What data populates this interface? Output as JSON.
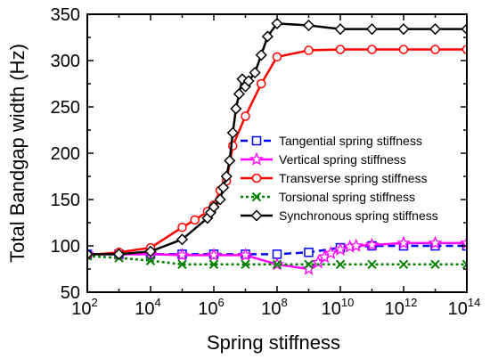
{
  "chart_data": {
    "type": "line",
    "xlabel": "Spring stiffness",
    "ylabel": "Total Bandgap width (Hz)",
    "xscale": "log10",
    "xlim_exp": [
      2,
      14
    ],
    "ylim": [
      50,
      350
    ],
    "xticks_exp": [
      2,
      4,
      6,
      8,
      10,
      12,
      14
    ],
    "xtick_base": "10",
    "yticks": [
      50,
      100,
      150,
      200,
      250,
      300,
      350
    ],
    "grid": false,
    "legend_position": "right",
    "series": [
      {
        "name": "Tangential spring stiffness",
        "color": "#0000ff",
        "line": "dashed",
        "marker": "square",
        "points": [
          [
            2,
            91
          ],
          [
            3,
            91
          ],
          [
            4,
            91
          ],
          [
            5,
            91
          ],
          [
            6,
            91
          ],
          [
            7,
            91
          ],
          [
            8,
            91
          ],
          [
            9,
            93
          ],
          [
            10,
            98
          ],
          [
            11,
            100
          ],
          [
            12,
            100
          ],
          [
            13,
            100
          ],
          [
            14,
            100
          ]
        ]
      },
      {
        "name": "Vertical spring stiffness",
        "color": "#ff00ff",
        "line": "solid",
        "marker": "star",
        "points": [
          [
            2,
            91
          ],
          [
            3,
            91
          ],
          [
            4,
            91
          ],
          [
            5,
            90
          ],
          [
            6,
            90
          ],
          [
            7,
            90
          ],
          [
            8,
            80
          ],
          [
            9,
            75
          ],
          [
            9.3,
            82
          ],
          [
            9.5,
            88
          ],
          [
            9.7,
            92
          ],
          [
            10,
            96
          ],
          [
            10.3,
            99
          ],
          [
            10.5,
            100
          ],
          [
            11,
            101
          ],
          [
            12,
            103
          ],
          [
            13,
            103
          ],
          [
            14,
            103
          ]
        ]
      },
      {
        "name": "Transverse spring stiffness",
        "color": "#ff0000",
        "line": "solid",
        "marker": "circle",
        "points": [
          [
            2,
            90
          ],
          [
            3,
            93
          ],
          [
            4,
            98
          ],
          [
            5,
            120
          ],
          [
            5.4,
            128
          ],
          [
            5.8,
            137
          ],
          [
            6,
            144
          ],
          [
            6.2,
            160
          ],
          [
            6.4,
            170
          ],
          [
            6.6,
            208
          ],
          [
            7,
            240
          ],
          [
            7.5,
            275
          ],
          [
            8,
            304
          ],
          [
            9,
            311
          ],
          [
            10,
            312
          ],
          [
            11,
            312
          ],
          [
            12,
            312
          ],
          [
            13,
            312
          ],
          [
            14,
            312
          ]
        ]
      },
      {
        "name": "Torsional spring stiffness",
        "color": "#008000",
        "line": "dotted",
        "marker": "x",
        "points": [
          [
            2,
            89
          ],
          [
            3,
            87
          ],
          [
            4,
            84
          ],
          [
            5,
            80
          ],
          [
            6,
            80
          ],
          [
            7,
            80
          ],
          [
            8,
            80
          ],
          [
            9,
            80
          ],
          [
            10,
            80
          ],
          [
            11,
            80
          ],
          [
            12,
            80
          ],
          [
            13,
            80
          ],
          [
            14,
            80
          ]
        ]
      },
      {
        "name": "Synchronous spring stiffness",
        "color": "#000000",
        "line": "solid",
        "marker": "diamond",
        "points": [
          [
            2,
            91
          ],
          [
            3,
            91
          ],
          [
            4,
            94
          ],
          [
            5,
            107
          ],
          [
            5.8,
            130
          ],
          [
            5.9,
            136
          ],
          [
            6,
            142
          ],
          [
            6.2,
            150
          ],
          [
            6.3,
            163
          ],
          [
            6.4,
            175
          ],
          [
            6.5,
            192
          ],
          [
            6.6,
            222
          ],
          [
            6.7,
            248
          ],
          [
            6.8,
            264
          ],
          [
            6.9,
            280
          ],
          [
            7,
            272
          ],
          [
            7.1,
            278
          ],
          [
            7.3,
            287
          ],
          [
            7.5,
            306
          ],
          [
            7.7,
            326
          ],
          [
            8,
            340
          ],
          [
            9,
            338
          ],
          [
            10,
            334
          ],
          [
            11,
            334
          ],
          [
            12,
            334
          ],
          [
            13,
            334
          ],
          [
            14,
            334
          ]
        ]
      }
    ]
  }
}
